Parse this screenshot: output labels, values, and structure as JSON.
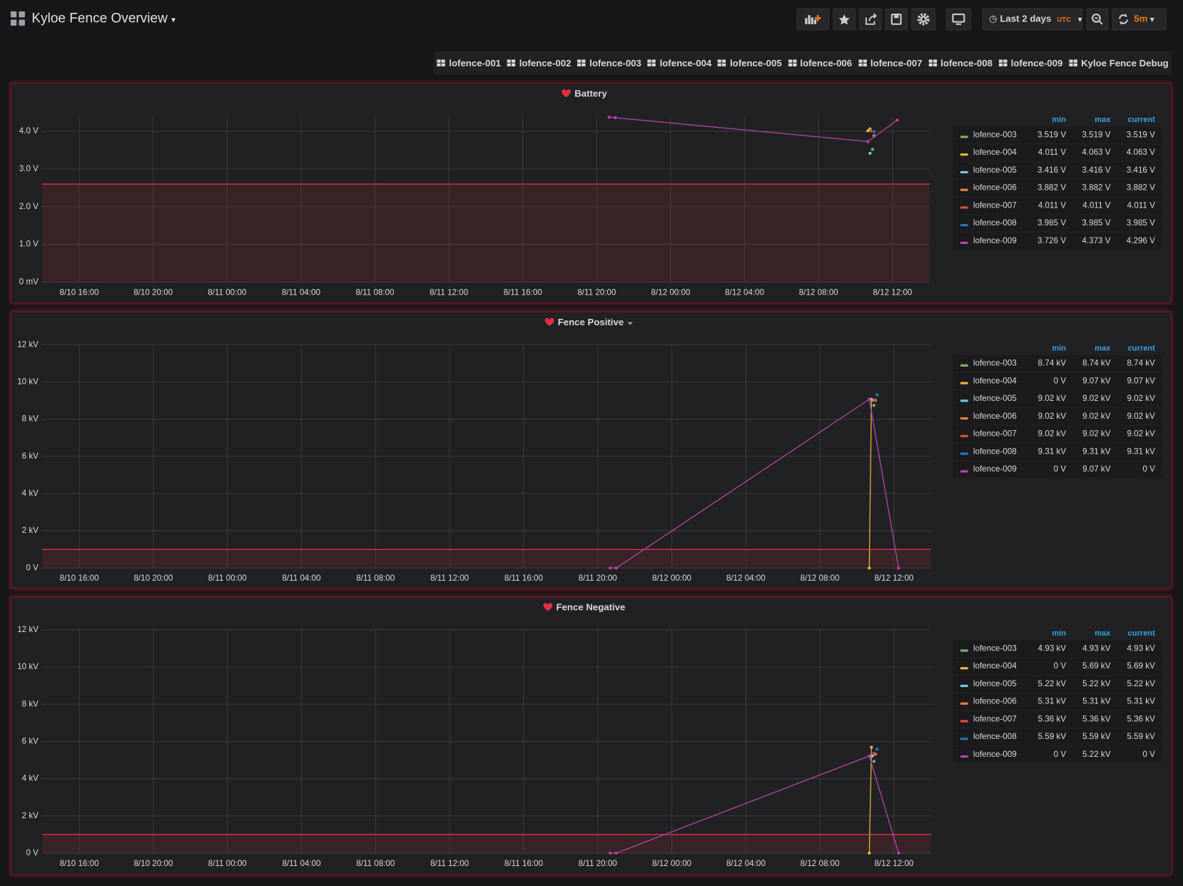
{
  "header": {
    "title": "Kyloe Fence Overview",
    "time_range": "Last 2 days",
    "timezone": "UTC",
    "refresh": "5m"
  },
  "links": [
    "lofence-001",
    "lofence-002",
    "lofence-003",
    "lofence-004",
    "lofence-005",
    "lofence-006",
    "lofence-007",
    "lofence-008",
    "lofence-009",
    "Kyloe Fence Debug"
  ],
  "chart_data": [
    {
      "type": "line",
      "title": "Battery",
      "xlim": [
        "8/10 14:00",
        "8/12 14:00"
      ],
      "xticks": [
        "8/10 16:00",
        "8/10 20:00",
        "8/11 00:00",
        "8/11 04:00",
        "8/11 08:00",
        "8/11 12:00",
        "8/11 16:00",
        "8/11 20:00",
        "8/12 00:00",
        "8/12 04:00",
        "8/12 08:00",
        "8/12 12:00"
      ],
      "ylim": [
        0,
        4.4
      ],
      "yticks": [
        {
          "value": 0,
          "label": "0 mV"
        },
        {
          "value": 1,
          "label": "1.0 V"
        },
        {
          "value": 2,
          "label": "2.0 V"
        },
        {
          "value": 3,
          "label": "3.0 V"
        },
        {
          "value": 4,
          "label": "4.0 V"
        }
      ],
      "threshold": 2.6,
      "threshold_color": "#e02f44",
      "grid": true,
      "legend_columns": [
        "min",
        "max",
        "current"
      ],
      "series": [
        {
          "name": "lofence-003",
          "color": "#7eb26d",
          "x": [
            "8/12 10:55"
          ],
          "values": [
            3.519
          ],
          "legend_labels": [
            "3.519 V",
            "3.519 V",
            "3.519 V"
          ]
        },
        {
          "name": "lofence-004",
          "color": "#eab839",
          "x": [
            "8/12 10:40",
            "8/12 10:47"
          ],
          "values": [
            4.011,
            4.063
          ],
          "legend_labels": [
            "4.011 V",
            "4.063 V",
            "4.063 V"
          ]
        },
        {
          "name": "lofence-005",
          "color": "#6ed0e0",
          "x": [
            "8/12 10:47"
          ],
          "values": [
            3.416
          ],
          "legend_labels": [
            "3.416 V",
            "3.416 V",
            "3.416 V"
          ]
        },
        {
          "name": "lofence-006",
          "color": "#ef843c",
          "x": [
            "8/12 11:00"
          ],
          "values": [
            3.882
          ],
          "legend_labels": [
            "3.882 V",
            "3.882 V",
            "3.882 V"
          ]
        },
        {
          "name": "lofence-007",
          "color": "#e24d42",
          "x": [
            "8/12 10:50"
          ],
          "values": [
            4.011
          ],
          "legend_labels": [
            "4.011 V",
            "4.011 V",
            "4.011 V"
          ]
        },
        {
          "name": "lofence-008",
          "color": "#1f78c1",
          "x": [
            "8/12 11:00"
          ],
          "values": [
            3.985
          ],
          "legend_labels": [
            "3.985 V",
            "3.985 V",
            "3.985 V"
          ]
        },
        {
          "name": "lofence-009",
          "color": "#ba43a9",
          "x": [
            "8/11 20:40",
            "8/11 21:00",
            "8/12 10:40",
            "8/12 12:15"
          ],
          "values": [
            4.373,
            4.36,
            3.726,
            4.296
          ],
          "legend_labels": [
            "3.726 V",
            "4.373 V",
            "4.296 V"
          ]
        }
      ]
    },
    {
      "type": "line",
      "title": "Fence Positive",
      "xlim": [
        "8/10 14:00",
        "8/12 14:00"
      ],
      "xticks": [
        "8/10 16:00",
        "8/10 20:00",
        "8/11 00:00",
        "8/11 04:00",
        "8/11 08:00",
        "8/11 12:00",
        "8/11 16:00",
        "8/11 20:00",
        "8/12 00:00",
        "8/12 04:00",
        "8/12 08:00",
        "8/12 12:00"
      ],
      "ylim": [
        0,
        12
      ],
      "yticks": [
        {
          "value": 0,
          "label": "0 V"
        },
        {
          "value": 2,
          "label": "2 kV"
        },
        {
          "value": 4,
          "label": "4 kV"
        },
        {
          "value": 6,
          "label": "6 kV"
        },
        {
          "value": 8,
          "label": "8 kV"
        },
        {
          "value": 10,
          "label": "10 kV"
        },
        {
          "value": 12,
          "label": "12 kV"
        }
      ],
      "threshold": 1,
      "threshold_color": "#e02f44",
      "grid": true,
      "legend_columns": [
        "min",
        "max",
        "current"
      ],
      "series": [
        {
          "name": "lofence-003",
          "color": "#7eb26d",
          "x": [
            "8/12 10:55"
          ],
          "values": [
            8.74
          ],
          "legend_labels": [
            "8.74 kV",
            "8.74 kV",
            "8.74 kV"
          ]
        },
        {
          "name": "lofence-004",
          "color": "#eab839",
          "x": [
            "8/12 10:40",
            "8/12 10:47"
          ],
          "values": [
            0,
            9.07
          ],
          "legend_labels": [
            "0 V",
            "9.07 kV",
            "9.07 kV"
          ]
        },
        {
          "name": "lofence-005",
          "color": "#6ed0e0",
          "x": [
            "8/12 10:50"
          ],
          "values": [
            9.02
          ],
          "legend_labels": [
            "9.02 kV",
            "9.02 kV",
            "9.02 kV"
          ]
        },
        {
          "name": "lofence-006",
          "color": "#ef843c",
          "x": [
            "8/12 11:00"
          ],
          "values": [
            9.02
          ],
          "legend_labels": [
            "9.02 kV",
            "9.02 kV",
            "9.02 kV"
          ]
        },
        {
          "name": "lofence-007",
          "color": "#e24d42",
          "x": [
            "8/12 10:55"
          ],
          "values": [
            9.02
          ],
          "legend_labels": [
            "9.02 kV",
            "9.02 kV",
            "9.02 kV"
          ]
        },
        {
          "name": "lofence-008",
          "color": "#1f78c1",
          "x": [
            "8/12 11:05"
          ],
          "values": [
            9.31
          ],
          "legend_labels": [
            "9.31 kV",
            "9.31 kV",
            "9.31 kV"
          ]
        },
        {
          "name": "lofence-009",
          "color": "#ba43a9",
          "x": [
            "8/11 20:40",
            "8/11 21:00",
            "8/12 10:40",
            "8/12 12:15"
          ],
          "values": [
            0,
            0,
            9.07,
            0
          ],
          "legend_labels": [
            "0 V",
            "9.07 kV",
            "0 V"
          ]
        }
      ]
    },
    {
      "type": "line",
      "title": "Fence Negative",
      "xlim": [
        "8/10 14:00",
        "8/12 14:00"
      ],
      "xticks": [
        "8/10 16:00",
        "8/10 20:00",
        "8/11 00:00",
        "8/11 04:00",
        "8/11 08:00",
        "8/11 12:00",
        "8/11 16:00",
        "8/11 20:00",
        "8/12 00:00",
        "8/12 04:00",
        "8/12 08:00",
        "8/12 12:00"
      ],
      "ylim": [
        0,
        12
      ],
      "yticks": [
        {
          "value": 0,
          "label": "0 V"
        },
        {
          "value": 2,
          "label": "2 kV"
        },
        {
          "value": 4,
          "label": "4 kV"
        },
        {
          "value": 6,
          "label": "6 kV"
        },
        {
          "value": 8,
          "label": "8 kV"
        },
        {
          "value": 10,
          "label": "10 kV"
        },
        {
          "value": 12,
          "label": "12 kV"
        }
      ],
      "threshold": 1,
      "threshold_color": "#e02f44",
      "grid": true,
      "legend_columns": [
        "min",
        "max",
        "current"
      ],
      "series": [
        {
          "name": "lofence-003",
          "color": "#7eb26d",
          "x": [
            "8/12 10:55"
          ],
          "values": [
            4.93
          ],
          "legend_labels": [
            "4.93 kV",
            "4.93 kV",
            "4.93 kV"
          ]
        },
        {
          "name": "lofence-004",
          "color": "#eab839",
          "x": [
            "8/12 10:40",
            "8/12 10:47"
          ],
          "values": [
            0,
            5.69
          ],
          "legend_labels": [
            "0 V",
            "5.69 kV",
            "5.69 kV"
          ]
        },
        {
          "name": "lofence-005",
          "color": "#6ed0e0",
          "x": [
            "8/12 10:50"
          ],
          "values": [
            5.22
          ],
          "legend_labels": [
            "5.22 kV",
            "5.22 kV",
            "5.22 kV"
          ]
        },
        {
          "name": "lofence-006",
          "color": "#ef843c",
          "x": [
            "8/12 11:00"
          ],
          "values": [
            5.31
          ],
          "legend_labels": [
            "5.31 kV",
            "5.31 kV",
            "5.31 kV"
          ]
        },
        {
          "name": "lofence-007",
          "color": "#e24d42",
          "x": [
            "8/12 10:55"
          ],
          "values": [
            5.36
          ],
          "legend_labels": [
            "5.36 kV",
            "5.36 kV",
            "5.36 kV"
          ]
        },
        {
          "name": "lofence-008",
          "color": "#1f78c1",
          "x": [
            "8/12 11:05"
          ],
          "values": [
            5.59
          ],
          "legend_labels": [
            "5.59 kV",
            "5.59 kV",
            "5.59 kV"
          ]
        },
        {
          "name": "lofence-009",
          "color": "#ba43a9",
          "x": [
            "8/11 20:40",
            "8/11 21:00",
            "8/12 10:40",
            "8/12 12:15"
          ],
          "values": [
            0,
            0,
            5.22,
            0
          ],
          "legend_labels": [
            "0 V",
            "5.22 kV",
            "0 V"
          ]
        }
      ]
    }
  ]
}
